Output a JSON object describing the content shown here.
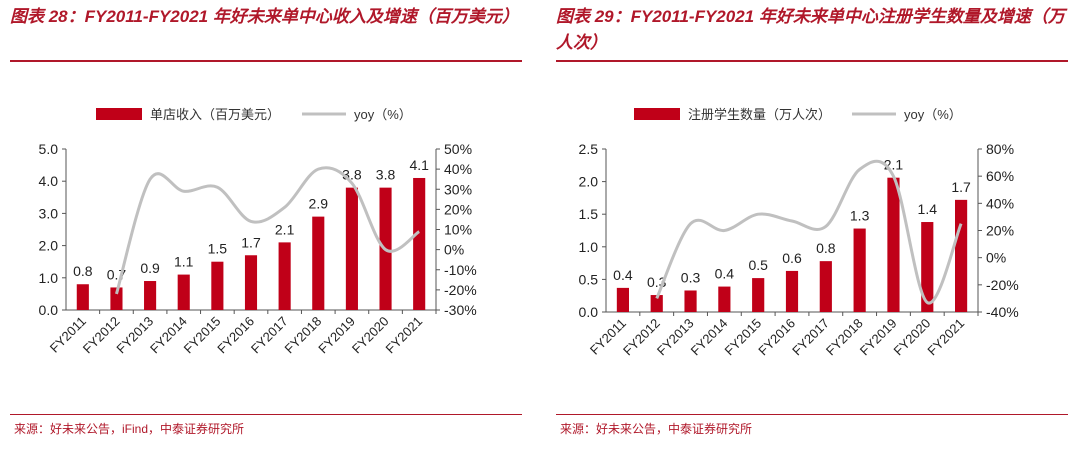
{
  "charts": [
    {
      "title": "图表 28：FY2011-FY2021 年好未来单中心收入及增速（百万美元）",
      "source": "来源：好未来公告，iFind，中泰证券研究所"
    },
    {
      "title": "图表 29：FY2011-FY2021 年好未来单中心注册学生数量及增速（万人次）",
      "source": "来源：好未来公告，中泰证券研究所"
    }
  ],
  "chart_data": [
    {
      "type": "bar",
      "title": "FY2011-FY2021 年好未来单中心收入及增速（百万美元）",
      "categories": [
        "FY2011",
        "FY2012",
        "FY2013",
        "FY2014",
        "FY2015",
        "FY2016",
        "FY2017",
        "FY2018",
        "FY2019",
        "FY2020",
        "FY2021"
      ],
      "series": [
        {
          "name": "单店收入（百万美元）",
          "kind": "bar",
          "axis": "left",
          "values": [
            0.8,
            0.7,
            0.9,
            1.1,
            1.5,
            1.7,
            2.1,
            2.9,
            3.8,
            3.8,
            4.1
          ],
          "labels": [
            "0.8",
            "0.7",
            "0.9",
            "1.1",
            "1.5",
            "1.7",
            "2.1",
            "2.9",
            "3.8",
            "3.8",
            "4.1"
          ]
        },
        {
          "name": "yoy（%）",
          "kind": "line",
          "axis": "right",
          "values": [
            null,
            -22,
            35,
            29,
            31,
            14,
            21,
            40,
            33,
            0,
            9
          ]
        }
      ],
      "ylim": [
        0,
        5
      ],
      "yticks": [
        "0.0",
        "1.0",
        "2.0",
        "3.0",
        "4.0",
        "5.0"
      ],
      "y2lim": [
        -30,
        50
      ],
      "y2ticks": [
        "-30%",
        "-20%",
        "-10%",
        "0%",
        "10%",
        "20%",
        "30%",
        "40%",
        "50%"
      ],
      "legend": "top",
      "colors": {
        "bar": "#c00018",
        "line": "#c0c0c0",
        "title": "#b0182a"
      }
    },
    {
      "type": "bar",
      "title": "FY2011-FY2021 年好未来单中心注册学生数量及增速（万人次）",
      "categories": [
        "FY2011",
        "FY2012",
        "FY2013",
        "FY2014",
        "FY2015",
        "FY2016",
        "FY2017",
        "FY2018",
        "FY2019",
        "FY2020",
        "FY2021"
      ],
      "series": [
        {
          "name": "注册学生数量（万人次）",
          "kind": "bar",
          "axis": "left",
          "values": [
            0.37,
            0.26,
            0.33,
            0.39,
            0.52,
            0.63,
            0.78,
            1.28,
            2.06,
            1.38,
            1.72
          ],
          "labels": [
            "0.4",
            "0.3",
            "0.3",
            "0.4",
            "0.5",
            "0.6",
            "0.8",
            "1.3",
            "2.1",
            "1.4",
            "1.7"
          ]
        },
        {
          "name": "yoy（%）",
          "kind": "line",
          "axis": "right",
          "values": [
            null,
            -30,
            25,
            20,
            32,
            27,
            23,
            65,
            60,
            -33,
            25
          ]
        }
      ],
      "ylim": [
        0,
        2.5
      ],
      "yticks": [
        "0.0",
        "0.5",
        "1.0",
        "1.5",
        "2.0",
        "2.5"
      ],
      "y2lim": [
        -40,
        80
      ],
      "y2ticks": [
        "-40%",
        "-20%",
        "0%",
        "20%",
        "40%",
        "60%",
        "80%"
      ],
      "legend": "top",
      "colors": {
        "bar": "#c00018",
        "line": "#c0c0c0",
        "title": "#b0182a"
      }
    }
  ]
}
